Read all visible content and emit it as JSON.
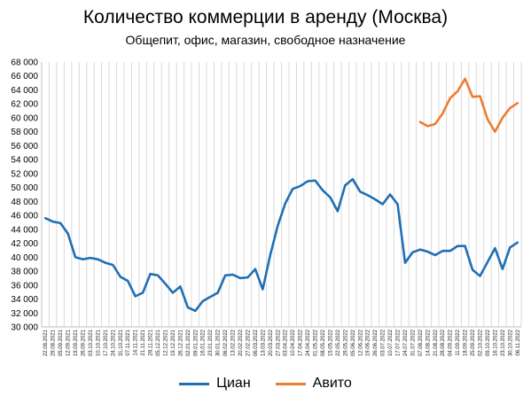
{
  "chart_data": {
    "type": "line",
    "title": "Количество коммерции в аренду (Москва)",
    "subtitle": "Общепит, офис, магазин, свободное назначение",
    "ylim": [
      30000,
      68000
    ],
    "ytick_step": 2000,
    "ytick_labels": [
      "30 000",
      "32 000",
      "34 000",
      "36 000",
      "38 000",
      "40 000",
      "42 000",
      "44 000",
      "46 000",
      "48 000",
      "50 000",
      "52 000",
      "54 000",
      "56 000",
      "58 000",
      "60 000",
      "62 000",
      "64 000",
      "66 000",
      "68 000"
    ],
    "grid": "vertical",
    "legend": "bottom",
    "categories": [
      "22.08.2021",
      "29.08.2021",
      "05.09.2021",
      "12.09.2021",
      "19.09.2021",
      "26.09.2021",
      "03.10.2021",
      "10.10.2021",
      "17.10.2021",
      "24.10.2021",
      "31.10.2021",
      "07.11.2021",
      "14.11.2021",
      "21.11.2021",
      "28.11.2021",
      "05.12.2021",
      "12.12.2021",
      "19.12.2021",
      "26.12.2021",
      "02.01.2022",
      "09.01.2022",
      "16.01.2022",
      "23.01.2022",
      "30.01.2022",
      "06.02.2022",
      "13.02.2022",
      "20.02.2022",
      "27.02.2022",
      "06.03.2022",
      "13.03.2022",
      "20.03.2022",
      "27.03.2022",
      "03.04.2022",
      "10.04.2022",
      "17.04.2022",
      "24.04.2022",
      "01.05.2022",
      "08.05.2022",
      "15.05.2022",
      "22.05.2022",
      "29.05.2022",
      "05.06.2022",
      "12.06.2022",
      "19.06.2022",
      "26.06.2022",
      "03.07.2022",
      "10.07.2022",
      "17.07.2022",
      "24.07.2022",
      "31.07.2022",
      "07.08.2022",
      "14.08.2022",
      "21.08.2022",
      "28.08.2022",
      "04.09.2022",
      "11.09.2022",
      "18.09.2022",
      "25.09.2022",
      "02.10.2022",
      "09.10.2022",
      "16.10.2022",
      "23.10.2022",
      "30.10.2022",
      "06.11.2022"
    ],
    "series": [
      {
        "name": "Циан",
        "color": "#1f6fb5",
        "values": [
          45600,
          45100,
          44900,
          43400,
          40000,
          39700,
          39900,
          39700,
          39200,
          38900,
          37200,
          36600,
          34400,
          34900,
          37600,
          37400,
          36200,
          34900,
          35800,
          32800,
          32300,
          33700,
          34300,
          34900,
          37400,
          37500,
          37000,
          37100,
          38300,
          35400,
          40300,
          44500,
          47700,
          49800,
          50200,
          50900,
          51000,
          49600,
          48600,
          46600,
          50300,
          51200,
          49400,
          48900,
          48300,
          47600,
          49000,
          47600,
          39200,
          40700,
          41100,
          40800,
          40300,
          40900,
          40900,
          41600,
          41600,
          38200,
          37300,
          39300,
          41300,
          38300,
          41400,
          42100
        ]
      },
      {
        "name": "Авито",
        "color": "#ed7d31",
        "values": [
          null,
          null,
          null,
          null,
          null,
          null,
          null,
          null,
          null,
          null,
          null,
          null,
          null,
          null,
          null,
          null,
          null,
          null,
          null,
          null,
          null,
          null,
          null,
          null,
          null,
          null,
          null,
          null,
          null,
          null,
          null,
          null,
          null,
          null,
          null,
          null,
          null,
          null,
          null,
          null,
          null,
          null,
          null,
          null,
          null,
          null,
          null,
          null,
          null,
          null,
          59400,
          58800,
          59100,
          60600,
          62800,
          63800,
          65600,
          63000,
          63100,
          59800,
          58000,
          60000,
          61400,
          62100
        ]
      }
    ]
  }
}
